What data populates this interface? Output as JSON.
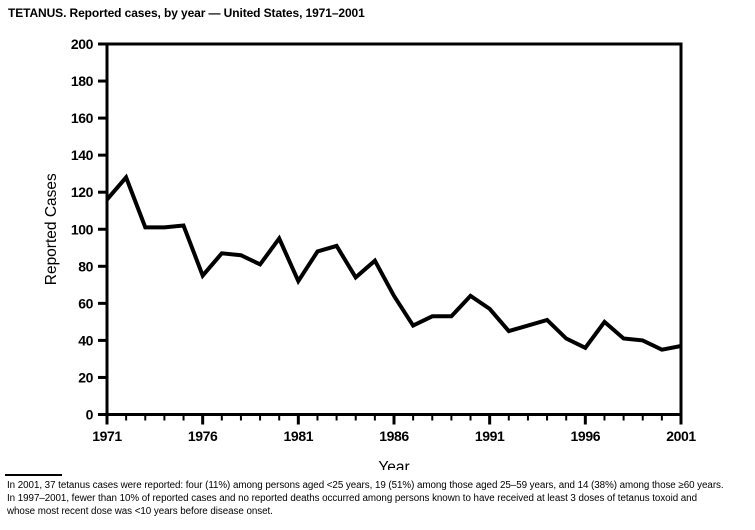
{
  "page": {
    "title": "TETANUS. Reported cases, by year — United States, 1971–2001",
    "footnote_lines": [
      "In 2001, 37 tetanus cases were reported: four (11%) among persons aged <25 years, 19 (51%) among those aged 25–59 years, and 14 (38%) among those ≥60 years.",
      "In 1997–2001, fewer than 10% of reported cases and no reported deaths occurred among persons known to have received at least 3 doses of tetanus toxoid and",
      "whose most recent dose was <10 years before disease onset."
    ]
  },
  "chart_data": {
    "type": "line",
    "title": "TETANUS. Reported cases, by year — United States, 1971–2001",
    "xlabel": "Year",
    "ylabel": "Reported Cases",
    "x": [
      1971,
      1972,
      1973,
      1974,
      1975,
      1976,
      1977,
      1978,
      1979,
      1980,
      1981,
      1982,
      1983,
      1984,
      1985,
      1986,
      1987,
      1988,
      1989,
      1990,
      1991,
      1992,
      1993,
      1994,
      1995,
      1996,
      1997,
      1998,
      1999,
      2000,
      2001
    ],
    "values": [
      116,
      128,
      101,
      101,
      102,
      75,
      87,
      86,
      81,
      95,
      72,
      88,
      91,
      74,
      83,
      64,
      48,
      53,
      53,
      64,
      57,
      45,
      48,
      51,
      41,
      36,
      50,
      41,
      40,
      35,
      37
    ],
    "xlim": [
      1971,
      2001
    ],
    "ylim": [
      0,
      200
    ],
    "ytick_step": 20,
    "xticks_labeled": [
      1971,
      1976,
      1981,
      1986,
      1991,
      1996,
      2001
    ],
    "xtick_minor_step": 1,
    "grid": false,
    "legend": "none",
    "frame": "box",
    "line_color": "#000000",
    "line_width": 4,
    "background_color": "#ffffff"
  }
}
